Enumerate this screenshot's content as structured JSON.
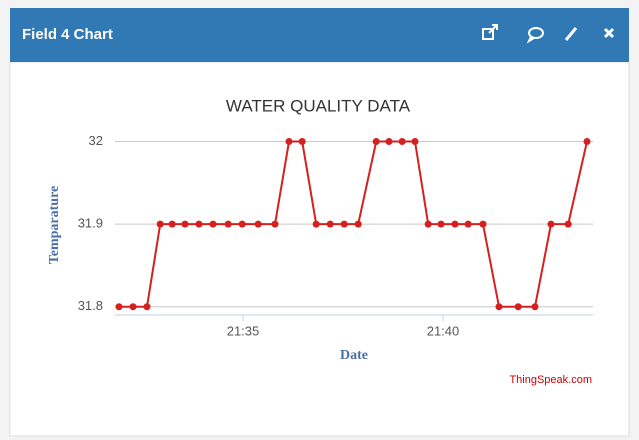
{
  "header": {
    "title": "Field 4 Chart"
  },
  "chart_data": {
    "type": "line",
    "title": "WATER QUALITY DATA",
    "x_label": "Date",
    "y_label": "Temparature",
    "credit": "ThingSpeak.com",
    "x": [
      31.9,
      32.25,
      32.6,
      32.93,
      33.23,
      33.55,
      33.9,
      34.25,
      34.63,
      34.98,
      35.38,
      35.8,
      36.15,
      36.48,
      36.83,
      37.18,
      37.53,
      37.88,
      38.33,
      38.65,
      38.98,
      39.3,
      39.63,
      39.95,
      40.3,
      40.63,
      41.0,
      41.4,
      41.88,
      42.3,
      42.7,
      43.13,
      43.6
    ],
    "series": [
      {
        "name": "Temparature",
        "color": "#d62020",
        "values": [
          31.8,
          31.8,
          31.8,
          31.9,
          31.9,
          31.9,
          31.9,
          31.9,
          31.9,
          31.9,
          31.9,
          31.9,
          32,
          32,
          31.9,
          31.9,
          31.9,
          31.9,
          32,
          32,
          32,
          32,
          31.9,
          31.9,
          31.9,
          31.9,
          31.9,
          31.8,
          31.8,
          31.8,
          31.9,
          31.9,
          32
        ]
      }
    ],
    "xlim": [
      31.8,
      43.75
    ],
    "ylim": [
      31.79,
      32.02
    ],
    "xticks": [
      {
        "value": 35,
        "label": "21:35"
      },
      {
        "value": 40,
        "label": "21:40"
      }
    ],
    "yticks": [
      31.8,
      31.9,
      32
    ],
    "grid": true
  }
}
